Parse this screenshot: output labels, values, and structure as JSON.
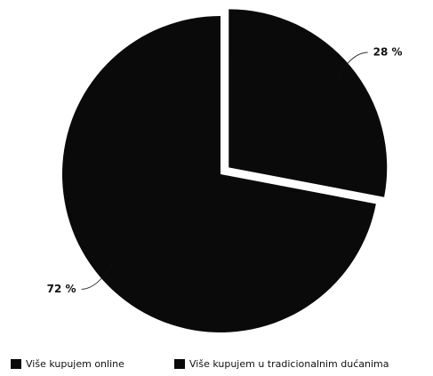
{
  "chart_data": {
    "type": "pie",
    "categories": [
      "Više kupujem online",
      "Više kupujem u tradicionalnim dućanima"
    ],
    "values": [
      28,
      72
    ],
    "value_labels": [
      "28 %",
      "72 %"
    ],
    "colors": [
      "#0a0a0a",
      "#0a0a0a"
    ]
  }
}
